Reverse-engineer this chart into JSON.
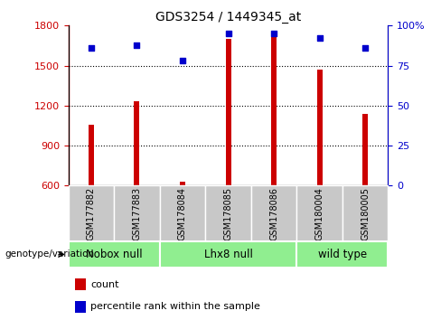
{
  "title": "GDS3254 / 1449345_at",
  "samples": [
    "GSM177882",
    "GSM177883",
    "GSM178084",
    "GSM178085",
    "GSM178086",
    "GSM180004",
    "GSM180005"
  ],
  "counts": [
    1055,
    1235,
    628,
    1700,
    1725,
    1470,
    1135
  ],
  "percentiles": [
    86,
    88,
    78,
    95,
    95,
    92,
    86
  ],
  "ylim_left": [
    600,
    1800
  ],
  "ylim_right": [
    0,
    100
  ],
  "yticks_left": [
    600,
    900,
    1200,
    1500,
    1800
  ],
  "yticks_right": [
    0,
    25,
    50,
    75,
    100
  ],
  "bar_color": "#cc0000",
  "dot_color": "#0000cc",
  "gridlines_at": [
    900,
    1200,
    1500
  ],
  "bar_width": 0.12,
  "group_ranges": [
    [
      -0.5,
      1.5
    ],
    [
      1.5,
      4.5
    ],
    [
      4.5,
      6.5
    ]
  ],
  "group_labels": [
    "Nobox null",
    "Lhx8 null",
    "wild type"
  ],
  "group_color": "#90ee90",
  "sample_bg_color": "#c8c8c8",
  "background_color": "#ffffff"
}
